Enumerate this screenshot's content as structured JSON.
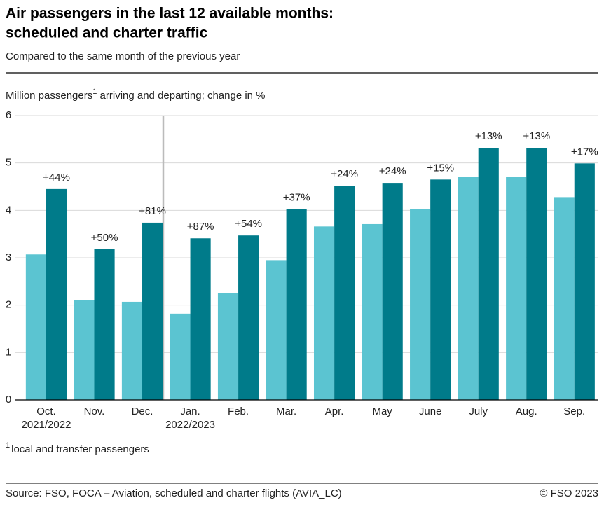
{
  "chart_data": {
    "type": "bar",
    "title": [
      "Air passengers in the last 12 available months:",
      "scheduled and charter traffic"
    ],
    "subtitle": "Compared to the same month of the previous year",
    "y_label": {
      "text": "Million passengers",
      "footnote_mark": "1",
      "rest": " arriving and departing; change in %"
    },
    "categories": [
      "Oct.",
      "Nov.",
      "Dec.",
      "Jan.",
      "Feb.",
      "Mar.",
      "Apr.",
      "May",
      "June",
      "July",
      "Aug.",
      "Sep."
    ],
    "year_labels": [
      "2021/2022",
      null,
      null,
      "2022/2023",
      null,
      null,
      null,
      null,
      null,
      null,
      null,
      null
    ],
    "series": [
      {
        "color": "#5bc4d1",
        "values": [
          3.07,
          2.11,
          2.07,
          1.82,
          2.26,
          2.95,
          3.66,
          3.71,
          4.03,
          4.71,
          4.7,
          4.28
        ]
      },
      {
        "color": "#007b8a",
        "values": [
          4.45,
          3.18,
          3.74,
          3.41,
          3.47,
          4.03,
          4.52,
          4.58,
          4.65,
          5.32,
          5.32,
          4.99
        ]
      }
    ],
    "change": {
      "values": [
        44,
        50,
        81,
        87,
        54,
        37,
        24,
        24,
        15,
        13,
        13,
        17
      ],
      "value_labels": [
        "+44%",
        "+50%",
        "+81%",
        "+87%",
        "+54%",
        "+37%",
        "+24%",
        "+24%",
        "+15%",
        "+13%",
        "+13%",
        "+17%"
      ]
    },
    "ylim": [
      0,
      6
    ],
    "yticks": [
      0,
      1,
      2,
      3,
      4,
      5,
      6
    ],
    "grid": true,
    "footnote": {
      "mark": "1",
      "text": "local and transfer passengers"
    },
    "source": "Source: FSO, FOCA – Aviation, scheduled and charter flights (AVIA_LC)",
    "copyright": "© FSO 2023"
  }
}
